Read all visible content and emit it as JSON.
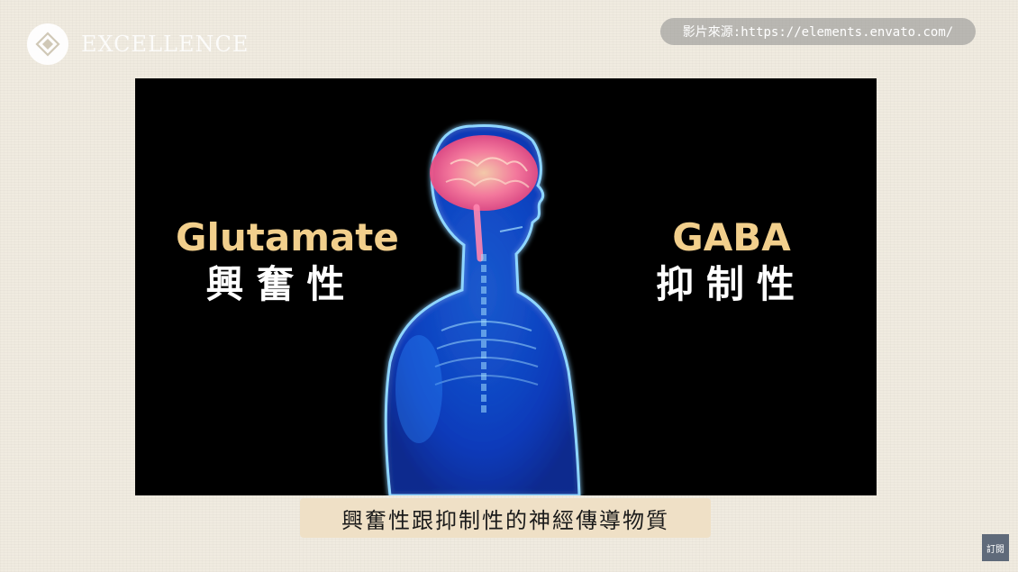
{
  "header": {
    "logo_text": "EXCELLENCE",
    "source_text": "影片來源:https://elements.envato.com/"
  },
  "video": {
    "left_label_en": "Glutamate",
    "left_label_zh": "興奮性",
    "right_label_en": "GABA",
    "right_label_zh": "抑制性",
    "illustration": "human-body-xray-brain"
  },
  "subtitle": {
    "text": "興奮性跟抑制性的神經傳導物質"
  },
  "subscribe": {
    "label": "訂閱"
  },
  "colors": {
    "page_background": "#f0ebe0",
    "video_background": "#000000",
    "accent_gold": "#f2cf8c",
    "body_glow_blue": "#3aa0ff",
    "brain_pink": "#ff6fa0",
    "subtitle_background": "#efe0c6",
    "source_pill_background": "#8c8c8c",
    "subscribe_background": "#5f6a7a"
  }
}
